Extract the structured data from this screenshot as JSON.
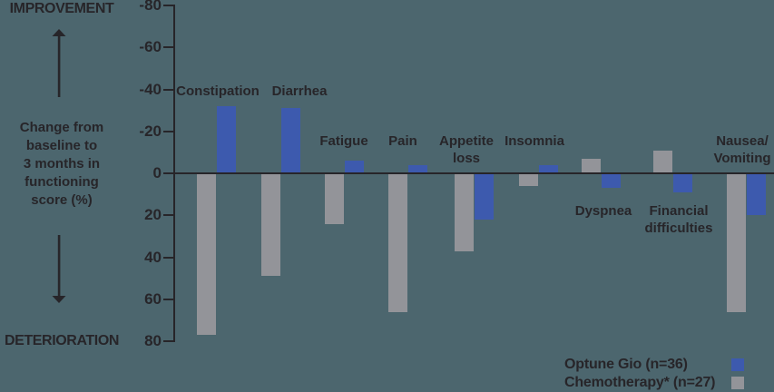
{
  "left_panel": {
    "improvement_label": "IMPROVEMENT",
    "deterioration_label": "DETERIORATION",
    "axis_description_lines": [
      "Change from",
      "baseline to",
      "3 months in",
      "functioning",
      "score (%)"
    ]
  },
  "legend": {
    "entries": [
      {
        "label": "Optune Gio (n=36)",
        "color": "#3D5AAE"
      },
      {
        "label": "Chemotherapy* (n=27)",
        "color": "#939499"
      }
    ]
  },
  "chart_data": {
    "type": "bar",
    "title": "",
    "ylabel": "Change from baseline to 3 months in functioning score (%)",
    "y_axis_inverted": true,
    "ylim": [
      -80,
      80
    ],
    "y_ticks": [
      -80,
      -60,
      -40,
      -20,
      0,
      20,
      40,
      60,
      80
    ],
    "y_tick_labels": [
      "-80",
      "-60",
      "-40",
      "-20",
      "0",
      "20",
      "40",
      "60",
      "80"
    ],
    "direction_semantics": {
      "negative_values": "improvement",
      "positive_values": "deterioration"
    },
    "grid": false,
    "legend_position": "bottom-right",
    "categories": [
      {
        "label": "Constipation",
        "lines": [
          "Constipation"
        ]
      },
      {
        "label": "Diarrhea",
        "lines": [
          "Diarrhea"
        ]
      },
      {
        "label": "Fatigue",
        "lines": [
          "Fatigue"
        ]
      },
      {
        "label": "Pain",
        "lines": [
          "Pain"
        ]
      },
      {
        "label": "Appetite loss",
        "lines": [
          "Appetite",
          "loss"
        ]
      },
      {
        "label": "Insomnia",
        "lines": [
          "Insomnia"
        ]
      },
      {
        "label": "Dyspnea",
        "lines": [
          "Dyspnea"
        ]
      },
      {
        "label": "Financial difficulties",
        "lines": [
          "Financial",
          "difficulties"
        ]
      },
      {
        "label": "Nausea/Vomiting",
        "lines": [
          "Nausea/",
          "Vomiting"
        ]
      }
    ],
    "series": [
      {
        "name": "Optune Gio (n=36)",
        "color": "#3D5AAE",
        "values": [
          -32,
          -31,
          -6,
          -4,
          22,
          -4,
          7,
          9,
          20
        ]
      },
      {
        "name": "Chemotherapy* (n=27)",
        "color": "#939499",
        "values": [
          77,
          49,
          24,
          66,
          37,
          6,
          -7,
          -11,
          66
        ]
      }
    ]
  }
}
